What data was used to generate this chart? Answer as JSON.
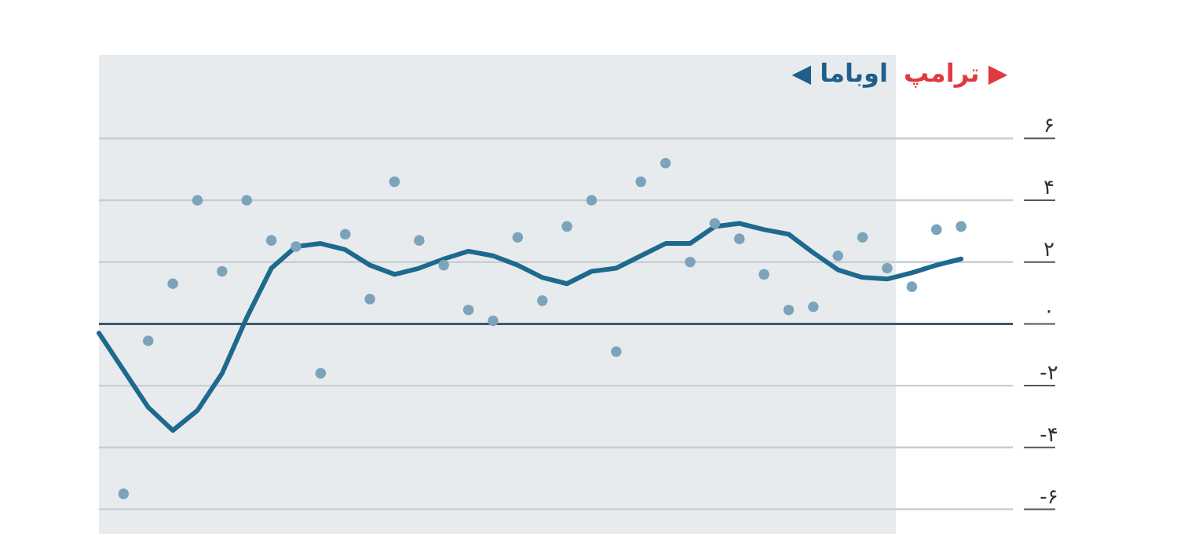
{
  "chart_data": {
    "type": "line",
    "categories": [
      null,
      null,
      null,
      null,
      null,
      null,
      null,
      null,
      null,
      null,
      null,
      null,
      null,
      null,
      null,
      null,
      null,
      null,
      null,
      null,
      null,
      null,
      null,
      null,
      null,
      null,
      null,
      null,
      null,
      null,
      null,
      null,
      null,
      null,
      null,
      null
    ],
    "series": [
      {
        "color": "#1e6a8e",
        "marker": "none",
        "values": [
          -0.3,
          -1.5,
          -2.7,
          -3.45,
          -2.8,
          -1.6,
          0.2,
          1.8,
          2.5,
          2.6,
          2.4,
          1.9,
          1.6,
          1.8,
          2.1,
          2.35,
          2.2,
          1.9,
          1.5,
          1.3,
          1.7,
          1.8,
          2.2,
          2.6,
          2.6,
          3.15,
          3.25,
          3.05,
          2.9,
          2.3,
          1.75,
          1.5,
          1.45,
          1.65,
          1.9,
          2.1
        ]
      },
      {
        "type": "scatter",
        "color": "#7ba4bb",
        "marker": "circle",
        "values": [
          null,
          -5.5,
          -0.55,
          1.3,
          4.0,
          1.7,
          4.0,
          2.7,
          2.5,
          -1.6,
          2.9,
          0.8,
          4.6,
          2.7,
          1.9,
          0.45,
          0.1,
          2.8,
          0.75,
          3.15,
          4.0,
          -0.9,
          4.6,
          5.2,
          2.0,
          3.25,
          2.75,
          1.6,
          0.45,
          0.55,
          2.2,
          2.8,
          1.8,
          1.2,
          3.05,
          3.15
        ]
      }
    ],
    "ylim": [
      -6.8,
      8.7
    ],
    "yticks": [
      {
        "value": -6,
        "label": "-۶"
      },
      {
        "value": -4,
        "label": "-۴"
      },
      {
        "value": -2,
        "label": "-۲"
      },
      {
        "value": 0,
        "label": "۰"
      },
      {
        "value": 2,
        "label": "۲"
      },
      {
        "value": 4,
        "label": "۴"
      },
      {
        "value": 6,
        "label": "۶"
      }
    ],
    "tick_labels": "y",
    "grid": "y",
    "ref_lines": [
      {
        "axis": "y",
        "value": 0,
        "color": "#3d5a6c"
      }
    ],
    "annotations": [
      "◀ اوباما",
      "ترامپ ▶"
    ]
  }
}
